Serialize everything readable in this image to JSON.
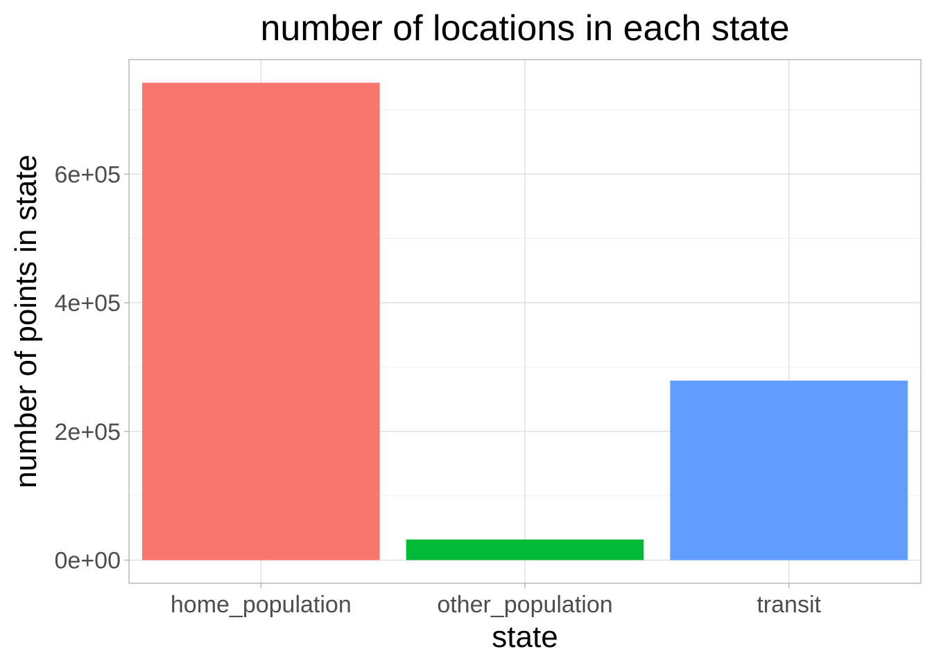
{
  "chart_data": {
    "type": "bar",
    "title": "number of locations in each state",
    "xlabel": "state",
    "ylabel": "number of points in state",
    "categories": [
      "home_population",
      "other_population",
      "transit"
    ],
    "values": [
      742000,
      32000,
      279000
    ],
    "colors": [
      "#F8766D",
      "#00BA38",
      "#619CFF"
    ],
    "ylim": [
      -36000,
      778000
    ],
    "yticks": [
      0,
      200000,
      400000,
      600000
    ],
    "ytick_labels": [
      "0e+00",
      "2e+05",
      "4e+05",
      "6e+05"
    ],
    "grid": true,
    "legend": "none"
  }
}
